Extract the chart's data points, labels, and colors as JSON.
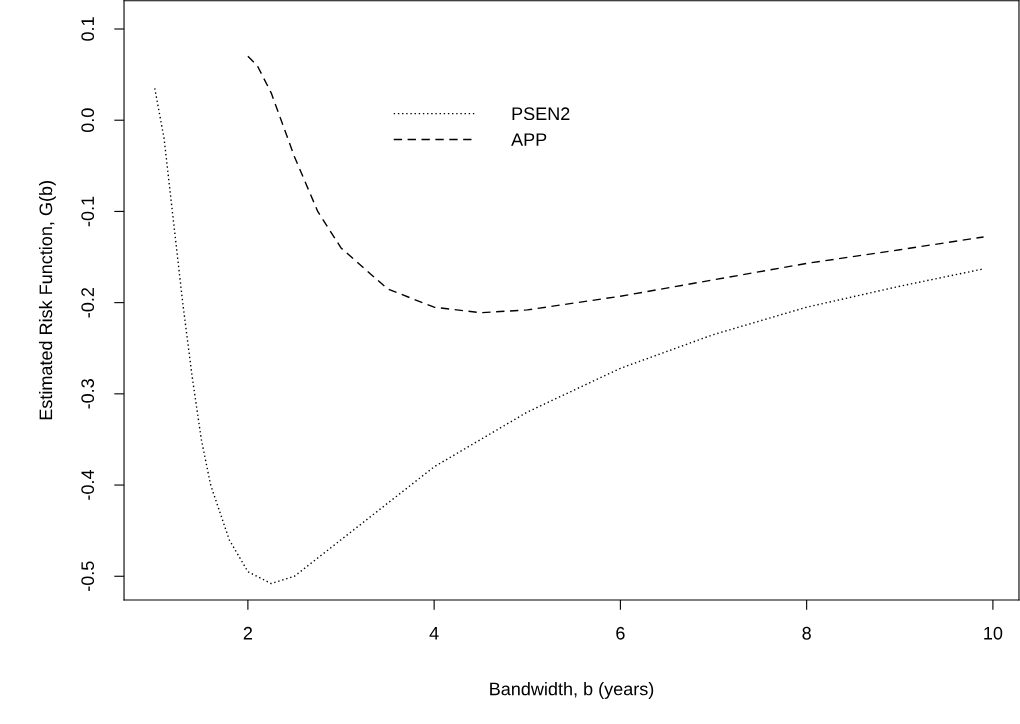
{
  "chart_data": {
    "type": "line",
    "xlabel": "Bandwidth, b (years)",
    "ylabel": "Estimated Risk Function, G(b)",
    "xlim": [
      0.67,
      10.28
    ],
    "ylim": [
      -0.526,
      0.131
    ],
    "xticks": [
      2,
      4,
      6,
      8,
      10
    ],
    "yticks": [
      {
        "value": 0.1,
        "label": "0.1"
      },
      {
        "value": 0.0,
        "label": "0.0"
      },
      {
        "value": -0.1,
        "label": "-0.1"
      },
      {
        "value": -0.2,
        "label": "-0.2"
      },
      {
        "value": -0.3,
        "label": "-0.3"
      },
      {
        "value": -0.4,
        "label": "-0.4"
      },
      {
        "value": -0.5,
        "label": "-0.5"
      }
    ],
    "grid": false,
    "legend": "top",
    "marker": "none",
    "series": [
      {
        "name": "PSEN2",
        "color": "#000000",
        "line_style": "dotted",
        "x": [
          1.0,
          1.1,
          1.2,
          1.3,
          1.4,
          1.5,
          1.6,
          1.8,
          2.0,
          2.25,
          2.5,
          3.0,
          3.5,
          4.0,
          5.0,
          6.0,
          7.0,
          8.0,
          9.0,
          9.9
        ],
        "values": [
          0.035,
          -0.02,
          -0.11,
          -0.2,
          -0.28,
          -0.35,
          -0.4,
          -0.46,
          -0.495,
          -0.508,
          -0.5,
          -0.46,
          -0.42,
          -0.38,
          -0.32,
          -0.272,
          -0.235,
          -0.205,
          -0.182,
          -0.163
        ]
      },
      {
        "name": "APP",
        "color": "#000000",
        "line_style": "dashed",
        "x": [
          2.0,
          2.1,
          2.25,
          2.5,
          2.75,
          3.0,
          3.5,
          4.0,
          4.5,
          5.0,
          6.0,
          7.0,
          8.0,
          9.0,
          9.9
        ],
        "values": [
          0.07,
          0.06,
          0.03,
          -0.04,
          -0.1,
          -0.14,
          -0.185,
          -0.205,
          -0.211,
          -0.208,
          -0.193,
          -0.175,
          -0.157,
          -0.142,
          -0.128
        ]
      }
    ]
  }
}
